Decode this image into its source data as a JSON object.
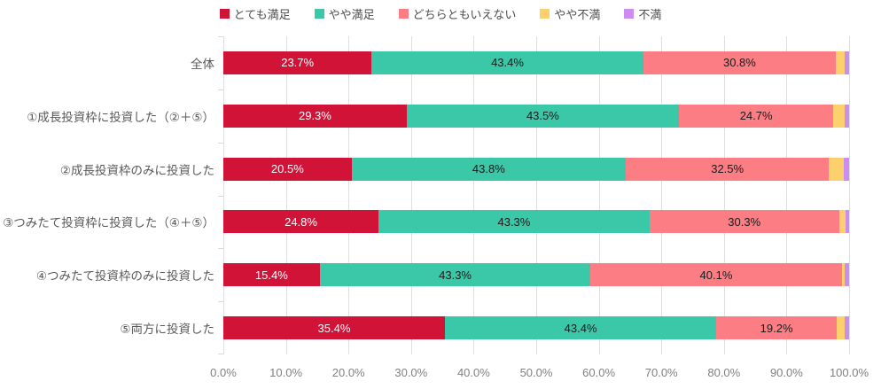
{
  "chart_data": {
    "type": "bar",
    "orientation": "horizontal",
    "stacked": true,
    "title": "",
    "xlabel": "",
    "ylabel": "",
    "xlim": [
      0,
      100
    ],
    "grid": true,
    "legend_position": "top",
    "value_suffix": "%",
    "x_ticks": [
      "0.0%",
      "10.0%",
      "20.0%",
      "30.0%",
      "40.0%",
      "50.0%",
      "60.0%",
      "70.0%",
      "80.0%",
      "90.0%",
      "100.0%"
    ],
    "categories": [
      "全体",
      "①成長投資枠に投資した（②＋⑤）",
      "②成長投資枠のみに投資した",
      "③つみたて投資枠に投資した（④＋⑤）",
      "④つみたて投資枠のみに投資した",
      "⑤両方に投資した"
    ],
    "series": [
      {
        "name": "とても満足",
        "color": "#d11338",
        "label_color": "#ffffff",
        "show_labels": true,
        "values": [
          23.7,
          29.3,
          20.5,
          24.8,
          15.4,
          35.4
        ]
      },
      {
        "name": "やや満足",
        "color": "#3ac8a8",
        "label_color": "#1a1a1a",
        "show_labels": true,
        "values": [
          43.4,
          43.5,
          43.8,
          43.3,
          43.3,
          43.4
        ]
      },
      {
        "name": "どちらともいえない",
        "color": "#fc7d84",
        "label_color": "#1a1a1a",
        "show_labels": true,
        "values": [
          30.8,
          24.7,
          32.5,
          30.3,
          40.1,
          19.2
        ]
      },
      {
        "name": "やや不満",
        "color": "#fdd06e",
        "label_color": "#1a1a1a",
        "show_labels": false,
        "values": [
          1.4,
          1.8,
          2.4,
          1.0,
          0.5,
          1.3
        ]
      },
      {
        "name": "不満",
        "color": "#cd8df0",
        "label_color": "#ffffff",
        "show_labels": false,
        "values": [
          0.7,
          0.7,
          0.8,
          0.6,
          0.7,
          0.7
        ]
      }
    ]
  },
  "style_colors": {
    "grid": "#dedede",
    "axis_text": "#7f7f7f",
    "category_text": "#595959",
    "legend_text": "#4d4d4d",
    "background": "#ffffff"
  }
}
